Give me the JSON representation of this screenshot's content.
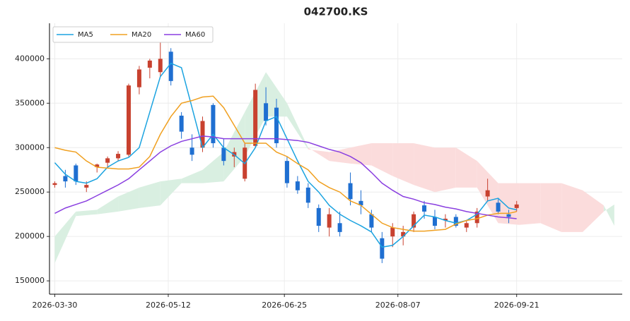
{
  "chart_data": {
    "type": "candlestick",
    "title": "042700.KS",
    "x": [
      "2026-03-30",
      "2026-04-03",
      "2026-04-07",
      "2026-04-11",
      "2026-04-15",
      "2026-04-19",
      "2026-04-23",
      "2026-04-27",
      "2026-05-01",
      "2026-05-05",
      "2026-05-09",
      "2026-05-13",
      "2026-05-17",
      "2026-05-21",
      "2026-05-25",
      "2026-05-29",
      "2026-06-02",
      "2026-06-06",
      "2026-06-10",
      "2026-06-14",
      "2026-06-18",
      "2026-06-22",
      "2026-06-26",
      "2026-06-30",
      "2026-07-04",
      "2026-07-08",
      "2026-07-12",
      "2026-07-16",
      "2026-07-20",
      "2026-07-24",
      "2026-07-28",
      "2026-08-01",
      "2026-08-05",
      "2026-08-09",
      "2026-08-13",
      "2026-08-17",
      "2026-08-21",
      "2026-08-25",
      "2026-08-29",
      "2026-09-02",
      "2026-09-06",
      "2026-09-10",
      "2026-09-14",
      "2026-09-18",
      "2026-09-21"
    ],
    "open": [
      258000,
      268000,
      280000,
      255000,
      278000,
      283000,
      288000,
      292000,
      368000,
      390000,
      385000,
      408000,
      336000,
      300000,
      300000,
      348000,
      300000,
      290000,
      265000,
      302000,
      350000,
      345000,
      285000,
      262000,
      255000,
      232000,
      210000,
      215000,
      260000,
      240000,
      225000,
      198000,
      200000,
      200000,
      210000,
      235000,
      222000,
      218000,
      222000,
      210000,
      215000,
      245000,
      238000,
      225000,
      232000
    ],
    "high": [
      262000,
      275000,
      282000,
      262000,
      282000,
      290000,
      296000,
      372000,
      392000,
      400000,
      420000,
      412000,
      340000,
      315000,
      335000,
      350000,
      310000,
      300000,
      305000,
      372000,
      368000,
      355000,
      290000,
      268000,
      260000,
      236000,
      232000,
      228000,
      272000,
      252000,
      230000,
      205000,
      215000,
      212000,
      228000,
      240000,
      230000,
      225000,
      225000,
      218000,
      232000,
      265000,
      242000,
      230000,
      240000
    ],
    "low": [
      255000,
      255000,
      258000,
      250000,
      272000,
      278000,
      285000,
      290000,
      360000,
      378000,
      380000,
      370000,
      310000,
      285000,
      295000,
      300000,
      280000,
      278000,
      262000,
      300000,
      325000,
      300000,
      255000,
      248000,
      232000,
      205000,
      200000,
      200000,
      235000,
      225000,
      205000,
      170000,
      188000,
      190000,
      205000,
      220000,
      208000,
      210000,
      210000,
      205000,
      210000,
      240000,
      225000,
      215000,
      228000
    ],
    "close": [
      260000,
      262000,
      262000,
      258000,
      281000,
      288000,
      293000,
      370000,
      388000,
      398000,
      400000,
      375000,
      318000,
      292000,
      330000,
      305000,
      285000,
      295000,
      300000,
      365000,
      330000,
      305000,
      260000,
      252000,
      238000,
      212000,
      225000,
      205000,
      242000,
      235000,
      210000,
      175000,
      210000,
      205000,
      225000,
      228000,
      212000,
      220000,
      212000,
      215000,
      228000,
      252000,
      228000,
      222000,
      236000
    ],
    "up_color": "#c8412f",
    "down_color": "#1f6fd1",
    "series": [
      {
        "name": "MA5",
        "color": "#1ba3e0",
        "values": [
          283000,
          270000,
          262000,
          260000,
          265000,
          278000,
          285000,
          289000,
          300000,
          340000,
          380000,
          395000,
          390000,
          345000,
          300000,
          315000,
          300000,
          292000,
          282000,
          300000,
          330000,
          335000,
          310000,
          285000,
          262000,
          250000,
          235000,
          225000,
          218000,
          212000,
          205000,
          188000,
          190000,
          200000,
          212000,
          224000,
          222000,
          218000,
          215000,
          218000,
          225000,
          240000,
          243000,
          232000,
          230000
        ]
      },
      {
        "name": "MA20",
        "color": "#f0a020",
        "values": [
          300000,
          297000,
          295000,
          285000,
          278000,
          277000,
          276000,
          276000,
          278000,
          290000,
          315000,
          335000,
          350000,
          353000,
          357000,
          358000,
          345000,
          325000,
          305000,
          305000,
          305000,
          295000,
          290000,
          282000,
          275000,
          262000,
          255000,
          250000,
          240000,
          235000,
          225000,
          215000,
          210000,
          208000,
          206000,
          206000,
          207000,
          208000,
          214000,
          218000,
          220000,
          224000,
          226000,
          226000,
          228000
        ]
      },
      {
        "name": "MA60",
        "color": "#8a3fe0",
        "values": [
          226000,
          232000,
          236000,
          240000,
          246000,
          252000,
          258000,
          265000,
          275000,
          285000,
          295000,
          302000,
          307000,
          310000,
          313000,
          312000,
          310000,
          310000,
          310000,
          310000,
          310000,
          310000,
          309000,
          308000,
          306000,
          302000,
          298000,
          295000,
          290000,
          283000,
          272000,
          260000,
          252000,
          245000,
          242000,
          238000,
          236000,
          233000,
          231000,
          228000,
          226000,
          224000,
          222000,
          221000,
          220000
        ]
      }
    ],
    "cloud_x": [
      "2026-03-30",
      "2026-04-07",
      "2026-04-15",
      "2026-04-23",
      "2026-05-01",
      "2026-05-09",
      "2026-05-17",
      "2026-05-25",
      "2026-06-02",
      "2026-06-10",
      "2026-06-18",
      "2026-06-26",
      "2026-07-04",
      "2026-07-12",
      "2026-07-20",
      "2026-07-28",
      "2026-08-05",
      "2026-08-13",
      "2026-08-21",
      "2026-08-29",
      "2026-09-06",
      "2026-09-14",
      "2026-09-22",
      "2026-09-30",
      "2026-10-08",
      "2026-10-16",
      "2026-10-24",
      "2026-10-28"
    ],
    "span_a": [
      200000,
      228000,
      230000,
      245000,
      255000,
      262000,
      265000,
      275000,
      295000,
      340000,
      385000,
      350000,
      300000,
      285000,
      282000,
      280000,
      268000,
      258000,
      250000,
      255000,
      255000,
      215000,
      213000,
      215000,
      205000,
      205000,
      228000,
      236000
    ],
    "span_b": [
      170000,
      223000,
      225000,
      228000,
      232000,
      235000,
      260000,
      260000,
      262000,
      290000,
      335000,
      335000,
      298000,
      295000,
      300000,
      305000,
      305000,
      305000,
      300000,
      300000,
      285000,
      260000,
      260000,
      260000,
      260000,
      252000,
      235000,
      212000
    ],
    "cloud_up_color": "#d9efe1",
    "cloud_down_color": "#fbdcdc",
    "xlim": [
      "2026-03-28",
      "2026-10-31"
    ],
    "xticks": [
      "2026-03-30",
      "2026-05-12",
      "2026-06-25",
      "2026-08-07",
      "2026-09-21"
    ],
    "ylim": [
      135000,
      440000
    ],
    "yticks": [
      150000,
      200000,
      250000,
      300000,
      350000,
      400000
    ],
    "grid": true,
    "legend": "upper left"
  }
}
